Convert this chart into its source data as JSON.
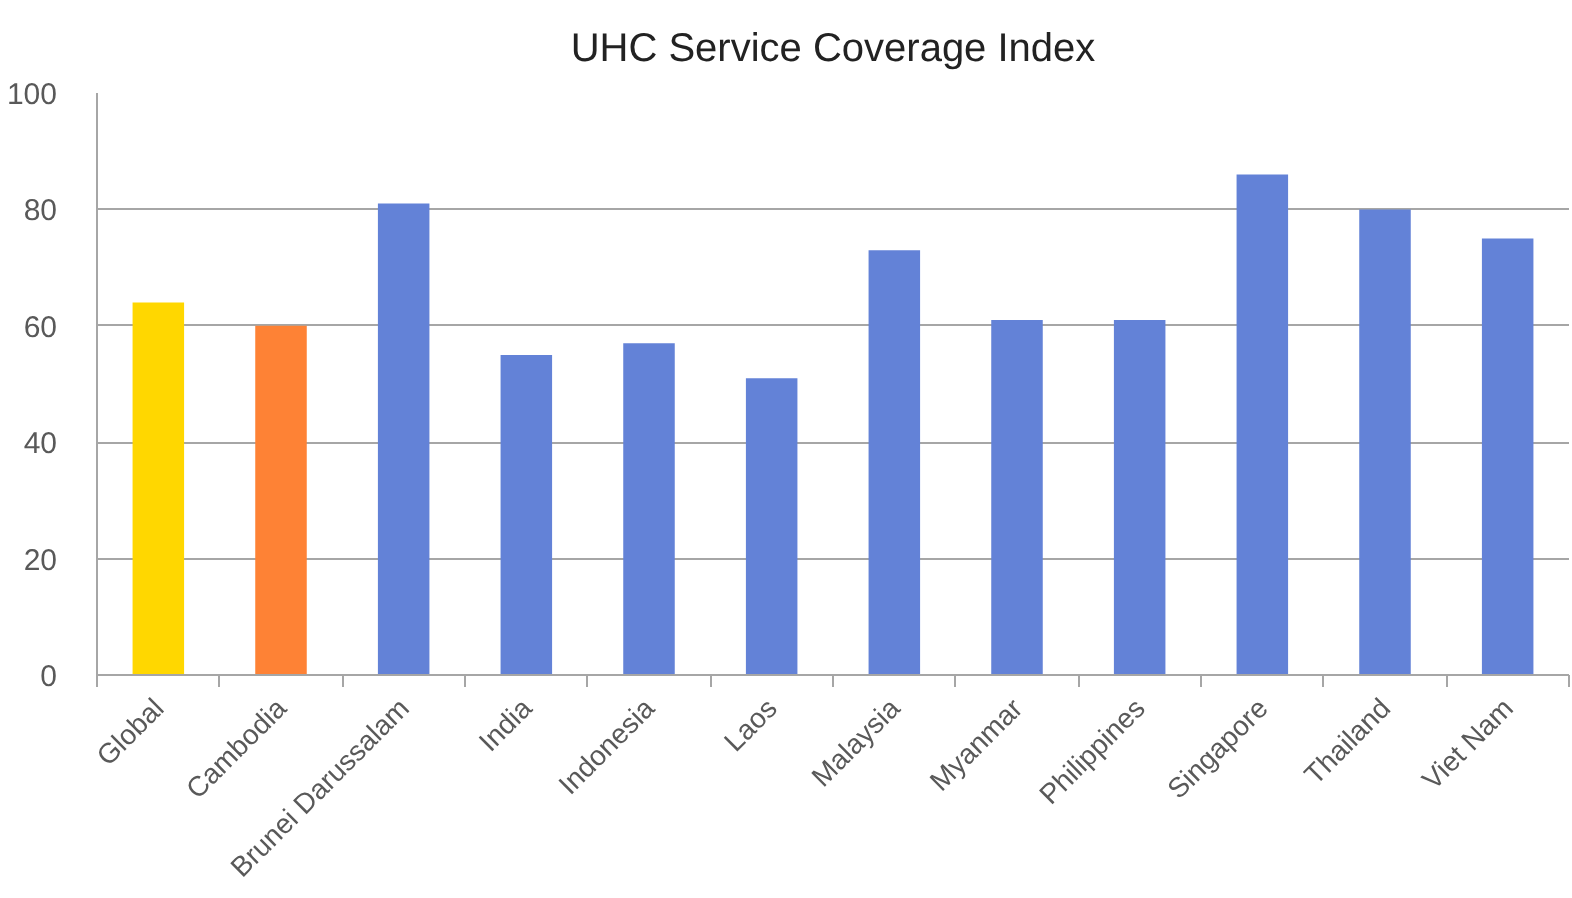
{
  "chart_data": {
    "type": "bar",
    "title": "UHC Service Coverage Index",
    "categories": [
      "Global",
      "Cambodia",
      "Brunei Darussalam",
      "India",
      "Indonesia",
      "Laos",
      "Malaysia",
      "Myanmar",
      "Philippines",
      "Singapore",
      "Thailand",
      "Viet Nam"
    ],
    "values": [
      64,
      60,
      81,
      55,
      57,
      51,
      73,
      61,
      61,
      86,
      80,
      75
    ],
    "colors": [
      "#ffd700",
      "#fe8235",
      "#6382d7",
      "#6382d7",
      "#6382d7",
      "#6382d7",
      "#6382d7",
      "#6382d7",
      "#6382d7",
      "#6382d7",
      "#6382d7",
      "#6382d7"
    ],
    "ylim": [
      0,
      100
    ],
    "yticks": [
      0,
      20,
      40,
      60,
      80,
      100
    ],
    "grid": "y"
  }
}
